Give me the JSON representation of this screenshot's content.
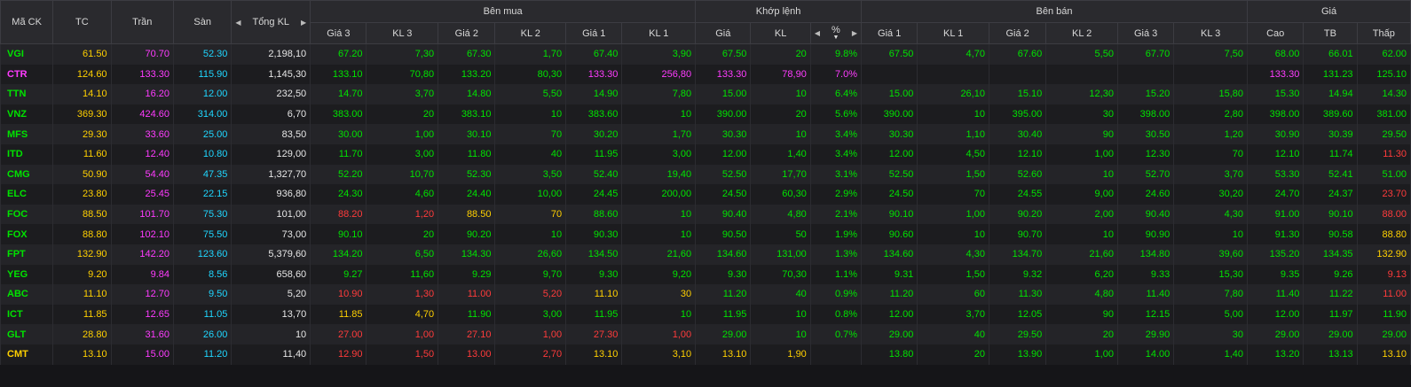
{
  "colors": {
    "up": "#00e300",
    "down": "#ff3b3b",
    "ref": "#ffd000",
    "ceil": "#ff3bff",
    "floor": "#1fd6ff",
    "neutral": "#e6e6e6",
    "header_bg": "#2a2a2e"
  },
  "headers": {
    "symbol": "Mã CK",
    "ref": "TC",
    "ceil": "Trần",
    "floor": "Sàn",
    "total_vol": "Tổng KL",
    "buy_group": "Bên mua",
    "match_group": "Khớp lệnh",
    "sell_group": "Bên bán",
    "price_group": "Giá",
    "buy_cols": [
      "Giá 3",
      "KL 3",
      "Giá 2",
      "KL 2",
      "Giá 1",
      "KL 1"
    ],
    "match_cols": {
      "price": "Giá",
      "vol": "KL",
      "pct": "%"
    },
    "sell_cols": [
      "Giá 1",
      "KL 1",
      "Giá 2",
      "KL 2",
      "Giá 3",
      "KL 3"
    ],
    "price_cols": [
      "Cao",
      "TB",
      "Thấp"
    ]
  },
  "icons": {
    "left": "caret-left-icon",
    "right": "caret-right-icon",
    "sort": "sort-desc-icon"
  },
  "rows": [
    {
      "sym": "VGI",
      "sc": "g",
      "tc": "61.50",
      "tran": "70.70",
      "san": "52.30",
      "tkl": "2,198,10",
      "b": [
        [
          "67.20",
          "g"
        ],
        [
          "7,30",
          "g"
        ],
        [
          "67.30",
          "g"
        ],
        [
          "1,70",
          "g"
        ],
        [
          "67.40",
          "g"
        ],
        [
          "3,90",
          "g"
        ]
      ],
      "m": [
        [
          "67.50",
          "g"
        ],
        [
          "20",
          "g"
        ],
        [
          "9.8%",
          "g"
        ]
      ],
      "s": [
        [
          "67.50",
          "g"
        ],
        [
          "4,70",
          "g"
        ],
        [
          "67.60",
          "g"
        ],
        [
          "5,50",
          "g"
        ],
        [
          "67.70",
          "g"
        ],
        [
          "7,50",
          "g"
        ]
      ],
      "h": [
        [
          "68.00",
          "g"
        ],
        [
          "66.01",
          "g"
        ],
        [
          "62.00",
          "g"
        ]
      ]
    },
    {
      "sym": "CTR",
      "sc": "c",
      "tc": "124.60",
      "tran": "133.30",
      "san": "115.90",
      "tkl": "1,145,30",
      "b": [
        [
          "133.10",
          "g"
        ],
        [
          "70,80",
          "g"
        ],
        [
          "133.20",
          "g"
        ],
        [
          "80,30",
          "g"
        ],
        [
          "133.30",
          "c"
        ],
        [
          "256,80",
          "c"
        ]
      ],
      "m": [
        [
          "133.30",
          "c"
        ],
        [
          "78,90",
          "c"
        ],
        [
          "7.0%",
          "c"
        ]
      ],
      "s": [
        [
          "",
          "w"
        ],
        [
          "",
          "w"
        ],
        [
          "",
          "w"
        ],
        [
          "",
          "w"
        ],
        [
          "",
          "w"
        ],
        [
          "",
          "w"
        ]
      ],
      "h": [
        [
          "133.30",
          "c"
        ],
        [
          "131.23",
          "g"
        ],
        [
          "125.10",
          "g"
        ]
      ]
    },
    {
      "sym": "TTN",
      "sc": "g",
      "tc": "14.10",
      "tran": "16.20",
      "san": "12.00",
      "tkl": "232,50",
      "b": [
        [
          "14.70",
          "g"
        ],
        [
          "3,70",
          "g"
        ],
        [
          "14.80",
          "g"
        ],
        [
          "5,50",
          "g"
        ],
        [
          "14.90",
          "g"
        ],
        [
          "7,80",
          "g"
        ]
      ],
      "m": [
        [
          "15.00",
          "g"
        ],
        [
          "10",
          "g"
        ],
        [
          "6.4%",
          "g"
        ]
      ],
      "s": [
        [
          "15.00",
          "g"
        ],
        [
          "26,10",
          "g"
        ],
        [
          "15.10",
          "g"
        ],
        [
          "12,30",
          "g"
        ],
        [
          "15.20",
          "g"
        ],
        [
          "15,80",
          "g"
        ]
      ],
      "h": [
        [
          "15.30",
          "g"
        ],
        [
          "14.94",
          "g"
        ],
        [
          "14.30",
          "g"
        ]
      ]
    },
    {
      "sym": "VNZ",
      "sc": "g",
      "tc": "369.30",
      "tran": "424.60",
      "san": "314.00",
      "tkl": "6,70",
      "b": [
        [
          "383.00",
          "g"
        ],
        [
          "20",
          "g"
        ],
        [
          "383.10",
          "g"
        ],
        [
          "10",
          "g"
        ],
        [
          "383.60",
          "g"
        ],
        [
          "10",
          "g"
        ]
      ],
      "m": [
        [
          "390.00",
          "g"
        ],
        [
          "20",
          "g"
        ],
        [
          "5.6%",
          "g"
        ]
      ],
      "s": [
        [
          "390.00",
          "g"
        ],
        [
          "10",
          "g"
        ],
        [
          "395.00",
          "g"
        ],
        [
          "30",
          "g"
        ],
        [
          "398.00",
          "g"
        ],
        [
          "2,80",
          "g"
        ]
      ],
      "h": [
        [
          "398.00",
          "g"
        ],
        [
          "389.60",
          "g"
        ],
        [
          "381.00",
          "g"
        ]
      ]
    },
    {
      "sym": "MFS",
      "sc": "g",
      "tc": "29.30",
      "tran": "33.60",
      "san": "25.00",
      "tkl": "83,50",
      "b": [
        [
          "30.00",
          "g"
        ],
        [
          "1,00",
          "g"
        ],
        [
          "30.10",
          "g"
        ],
        [
          "70",
          "g"
        ],
        [
          "30.20",
          "g"
        ],
        [
          "1,70",
          "g"
        ]
      ],
      "m": [
        [
          "30.30",
          "g"
        ],
        [
          "10",
          "g"
        ],
        [
          "3.4%",
          "g"
        ]
      ],
      "s": [
        [
          "30.30",
          "g"
        ],
        [
          "1,10",
          "g"
        ],
        [
          "30.40",
          "g"
        ],
        [
          "90",
          "g"
        ],
        [
          "30.50",
          "g"
        ],
        [
          "1,20",
          "g"
        ]
      ],
      "h": [
        [
          "30.90",
          "g"
        ],
        [
          "30.39",
          "g"
        ],
        [
          "29.50",
          "g"
        ]
      ]
    },
    {
      "sym": "ITD",
      "sc": "g",
      "tc": "11.60",
      "tran": "12.40",
      "san": "10.80",
      "tkl": "129,00",
      "b": [
        [
          "11.70",
          "g"
        ],
        [
          "3,00",
          "g"
        ],
        [
          "11.80",
          "g"
        ],
        [
          "40",
          "g"
        ],
        [
          "11.95",
          "g"
        ],
        [
          "3,00",
          "g"
        ]
      ],
      "m": [
        [
          "12.00",
          "g"
        ],
        [
          "1,40",
          "g"
        ],
        [
          "3.4%",
          "g"
        ]
      ],
      "s": [
        [
          "12.00",
          "g"
        ],
        [
          "4,50",
          "g"
        ],
        [
          "12.10",
          "g"
        ],
        [
          "1,00",
          "g"
        ],
        [
          "12.30",
          "g"
        ],
        [
          "70",
          "g"
        ]
      ],
      "h": [
        [
          "12.10",
          "g"
        ],
        [
          "11.74",
          "g"
        ],
        [
          "11.30",
          "r"
        ]
      ]
    },
    {
      "sym": "CMG",
      "sc": "g",
      "tc": "50.90",
      "tran": "54.40",
      "san": "47.35",
      "tkl": "1,327,70",
      "b": [
        [
          "52.20",
          "g"
        ],
        [
          "10,70",
          "g"
        ],
        [
          "52.30",
          "g"
        ],
        [
          "3,50",
          "g"
        ],
        [
          "52.40",
          "g"
        ],
        [
          "19,40",
          "g"
        ]
      ],
      "m": [
        [
          "52.50",
          "g"
        ],
        [
          "17,70",
          "g"
        ],
        [
          "3.1%",
          "g"
        ]
      ],
      "s": [
        [
          "52.50",
          "g"
        ],
        [
          "1,50",
          "g"
        ],
        [
          "52.60",
          "g"
        ],
        [
          "10",
          "g"
        ],
        [
          "52.70",
          "g"
        ],
        [
          "3,70",
          "g"
        ]
      ],
      "h": [
        [
          "53.30",
          "g"
        ],
        [
          "52.41",
          "g"
        ],
        [
          "51.00",
          "g"
        ]
      ]
    },
    {
      "sym": "ELC",
      "sc": "g",
      "tc": "23.80",
      "tran": "25.45",
      "san": "22.15",
      "tkl": "936,80",
      "b": [
        [
          "24.30",
          "g"
        ],
        [
          "4,60",
          "g"
        ],
        [
          "24.40",
          "g"
        ],
        [
          "10,00",
          "g"
        ],
        [
          "24.45",
          "g"
        ],
        [
          "200,00",
          "g"
        ]
      ],
      "m": [
        [
          "24.50",
          "g"
        ],
        [
          "60,30",
          "g"
        ],
        [
          "2.9%",
          "g"
        ]
      ],
      "s": [
        [
          "24.50",
          "g"
        ],
        [
          "70",
          "g"
        ],
        [
          "24.55",
          "g"
        ],
        [
          "9,00",
          "g"
        ],
        [
          "24.60",
          "g"
        ],
        [
          "30,20",
          "g"
        ]
      ],
      "h": [
        [
          "24.70",
          "g"
        ],
        [
          "24.37",
          "g"
        ],
        [
          "23.70",
          "r"
        ]
      ]
    },
    {
      "sym": "FOC",
      "sc": "g",
      "tc": "88.50",
      "tran": "101.70",
      "san": "75.30",
      "tkl": "101,00",
      "b": [
        [
          "88.20",
          "r"
        ],
        [
          "1,20",
          "r"
        ],
        [
          "88.50",
          "y"
        ],
        [
          "70",
          "y"
        ],
        [
          "88.60",
          "g"
        ],
        [
          "10",
          "g"
        ]
      ],
      "m": [
        [
          "90.40",
          "g"
        ],
        [
          "4,80",
          "g"
        ],
        [
          "2.1%",
          "g"
        ]
      ],
      "s": [
        [
          "90.10",
          "g"
        ],
        [
          "1,00",
          "g"
        ],
        [
          "90.20",
          "g"
        ],
        [
          "2,00",
          "g"
        ],
        [
          "90.40",
          "g"
        ],
        [
          "4,30",
          "g"
        ]
      ],
      "h": [
        [
          "91.00",
          "g"
        ],
        [
          "90.10",
          "g"
        ],
        [
          "88.00",
          "r"
        ]
      ]
    },
    {
      "sym": "FOX",
      "sc": "g",
      "tc": "88.80",
      "tran": "102.10",
      "san": "75.50",
      "tkl": "73,00",
      "b": [
        [
          "90.10",
          "g"
        ],
        [
          "20",
          "g"
        ],
        [
          "90.20",
          "g"
        ],
        [
          "10",
          "g"
        ],
        [
          "90.30",
          "g"
        ],
        [
          "10",
          "g"
        ]
      ],
      "m": [
        [
          "90.50",
          "g"
        ],
        [
          "50",
          "g"
        ],
        [
          "1.9%",
          "g"
        ]
      ],
      "s": [
        [
          "90.60",
          "g"
        ],
        [
          "10",
          "g"
        ],
        [
          "90.70",
          "g"
        ],
        [
          "10",
          "g"
        ],
        [
          "90.90",
          "g"
        ],
        [
          "10",
          "g"
        ]
      ],
      "h": [
        [
          "91.30",
          "g"
        ],
        [
          "90.58",
          "g"
        ],
        [
          "88.80",
          "y"
        ]
      ]
    },
    {
      "sym": "FPT",
      "sc": "g",
      "tc": "132.90",
      "tran": "142.20",
      "san": "123.60",
      "tkl": "5,379,60",
      "b": [
        [
          "134.20",
          "g"
        ],
        [
          "6,50",
          "g"
        ],
        [
          "134.30",
          "g"
        ],
        [
          "26,60",
          "g"
        ],
        [
          "134.50",
          "g"
        ],
        [
          "21,60",
          "g"
        ]
      ],
      "m": [
        [
          "134.60",
          "g"
        ],
        [
          "131,00",
          "g"
        ],
        [
          "1.3%",
          "g"
        ]
      ],
      "s": [
        [
          "134.60",
          "g"
        ],
        [
          "4,30",
          "g"
        ],
        [
          "134.70",
          "g"
        ],
        [
          "21,60",
          "g"
        ],
        [
          "134.80",
          "g"
        ],
        [
          "39,60",
          "g"
        ]
      ],
      "h": [
        [
          "135.20",
          "g"
        ],
        [
          "134.35",
          "g"
        ],
        [
          "132.90",
          "y"
        ]
      ]
    },
    {
      "sym": "YEG",
      "sc": "g",
      "tc": "9.20",
      "tran": "9.84",
      "san": "8.56",
      "tkl": "658,60",
      "b": [
        [
          "9.27",
          "g"
        ],
        [
          "11,60",
          "g"
        ],
        [
          "9.29",
          "g"
        ],
        [
          "9,70",
          "g"
        ],
        [
          "9.30",
          "g"
        ],
        [
          "9,20",
          "g"
        ]
      ],
      "m": [
        [
          "9.30",
          "g"
        ],
        [
          "70,30",
          "g"
        ],
        [
          "1.1%",
          "g"
        ]
      ],
      "s": [
        [
          "9.31",
          "g"
        ],
        [
          "1,50",
          "g"
        ],
        [
          "9.32",
          "g"
        ],
        [
          "6,20",
          "g"
        ],
        [
          "9.33",
          "g"
        ],
        [
          "15,30",
          "g"
        ]
      ],
      "h": [
        [
          "9.35",
          "g"
        ],
        [
          "9.26",
          "g"
        ],
        [
          "9.13",
          "r"
        ]
      ]
    },
    {
      "sym": "ABC",
      "sc": "g",
      "tc": "11.10",
      "tran": "12.70",
      "san": "9.50",
      "tkl": "5,20",
      "b": [
        [
          "10.90",
          "r"
        ],
        [
          "1,30",
          "r"
        ],
        [
          "11.00",
          "r"
        ],
        [
          "5,20",
          "r"
        ],
        [
          "11.10",
          "y"
        ],
        [
          "30",
          "y"
        ]
      ],
      "m": [
        [
          "11.20",
          "g"
        ],
        [
          "40",
          "g"
        ],
        [
          "0.9%",
          "g"
        ]
      ],
      "s": [
        [
          "11.20",
          "g"
        ],
        [
          "60",
          "g"
        ],
        [
          "11.30",
          "g"
        ],
        [
          "4,80",
          "g"
        ],
        [
          "11.40",
          "g"
        ],
        [
          "7,80",
          "g"
        ]
      ],
      "h": [
        [
          "11.40",
          "g"
        ],
        [
          "11.22",
          "g"
        ],
        [
          "11.00",
          "r"
        ]
      ]
    },
    {
      "sym": "ICT",
      "sc": "g",
      "tc": "11.85",
      "tran": "12.65",
      "san": "11.05",
      "tkl": "13,70",
      "b": [
        [
          "11.85",
          "y"
        ],
        [
          "4,70",
          "y"
        ],
        [
          "11.90",
          "g"
        ],
        [
          "3,00",
          "g"
        ],
        [
          "11.95",
          "g"
        ],
        [
          "10",
          "g"
        ]
      ],
      "m": [
        [
          "11.95",
          "g"
        ],
        [
          "10",
          "g"
        ],
        [
          "0.8%",
          "g"
        ]
      ],
      "s": [
        [
          "12.00",
          "g"
        ],
        [
          "3,70",
          "g"
        ],
        [
          "12.05",
          "g"
        ],
        [
          "90",
          "g"
        ],
        [
          "12.15",
          "g"
        ],
        [
          "5,00",
          "g"
        ]
      ],
      "h": [
        [
          "12.00",
          "g"
        ],
        [
          "11.97",
          "g"
        ],
        [
          "11.90",
          "g"
        ]
      ]
    },
    {
      "sym": "GLT",
      "sc": "g",
      "tc": "28.80",
      "tran": "31.60",
      "san": "26.00",
      "tkl": "10",
      "b": [
        [
          "27.00",
          "r"
        ],
        [
          "1,00",
          "r"
        ],
        [
          "27.10",
          "r"
        ],
        [
          "1,00",
          "r"
        ],
        [
          "27.30",
          "r"
        ],
        [
          "1,00",
          "r"
        ]
      ],
      "m": [
        [
          "29.00",
          "g"
        ],
        [
          "10",
          "g"
        ],
        [
          "0.7%",
          "g"
        ]
      ],
      "s": [
        [
          "29.00",
          "g"
        ],
        [
          "40",
          "g"
        ],
        [
          "29.50",
          "g"
        ],
        [
          "20",
          "g"
        ],
        [
          "29.90",
          "g"
        ],
        [
          "30",
          "g"
        ]
      ],
      "h": [
        [
          "29.00",
          "g"
        ],
        [
          "29.00",
          "g"
        ],
        [
          "29.00",
          "g"
        ]
      ]
    },
    {
      "sym": "CMT",
      "sc": "y",
      "tc": "13.10",
      "tran": "15.00",
      "san": "11.20",
      "tkl": "11,40",
      "b": [
        [
          "12.90",
          "r"
        ],
        [
          "1,50",
          "r"
        ],
        [
          "13.00",
          "r"
        ],
        [
          "2,70",
          "r"
        ],
        [
          "13.10",
          "y"
        ],
        [
          "3,10",
          "y"
        ]
      ],
      "m": [
        [
          "13.10",
          "y"
        ],
        [
          "1,90",
          "y"
        ],
        [
          "",
          "w"
        ]
      ],
      "s": [
        [
          "13.80",
          "g"
        ],
        [
          "20",
          "g"
        ],
        [
          "13.90",
          "g"
        ],
        [
          "1,00",
          "g"
        ],
        [
          "14.00",
          "g"
        ],
        [
          "1,40",
          "g"
        ]
      ],
      "h": [
        [
          "13.20",
          "g"
        ],
        [
          "13.13",
          "g"
        ],
        [
          "13.10",
          "y"
        ]
      ]
    }
  ]
}
